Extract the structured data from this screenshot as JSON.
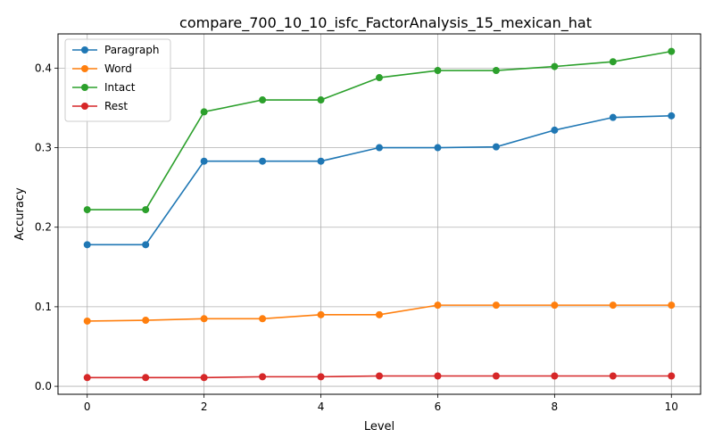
{
  "chart_data": {
    "type": "line",
    "title": "compare_700_10_10_isfc_FactorAnalysis_15_mexican_hat",
    "xlabel": "Level",
    "ylabel": "Accuracy",
    "xlim": [
      -0.5,
      10.5
    ],
    "ylim": [
      -0.01,
      0.443
    ],
    "xticks": [
      0,
      2,
      4,
      6,
      8,
      10
    ],
    "yticks": [
      0.0,
      0.1,
      0.2,
      0.3,
      0.4
    ],
    "grid": true,
    "legend_position": "top-left",
    "x": [
      0,
      1,
      2,
      3,
      4,
      5,
      6,
      7,
      8,
      9,
      10
    ],
    "series": [
      {
        "name": "Paragraph",
        "color": "#1f77b4",
        "values": [
          0.178,
          0.178,
          0.283,
          0.283,
          0.283,
          0.3,
          0.3,
          0.301,
          0.322,
          0.338,
          0.34
        ]
      },
      {
        "name": "Word",
        "color": "#ff7f0e",
        "values": [
          0.082,
          0.083,
          0.085,
          0.085,
          0.09,
          0.09,
          0.102,
          0.102,
          0.102,
          0.102,
          0.102
        ]
      },
      {
        "name": "Intact",
        "color": "#2ca02c",
        "values": [
          0.222,
          0.222,
          0.345,
          0.36,
          0.36,
          0.388,
          0.397,
          0.397,
          0.402,
          0.408,
          0.421
        ]
      },
      {
        "name": "Rest",
        "color": "#d62728",
        "values": [
          0.011,
          0.011,
          0.011,
          0.012,
          0.012,
          0.013,
          0.013,
          0.013,
          0.013,
          0.013,
          0.013
        ]
      }
    ]
  }
}
